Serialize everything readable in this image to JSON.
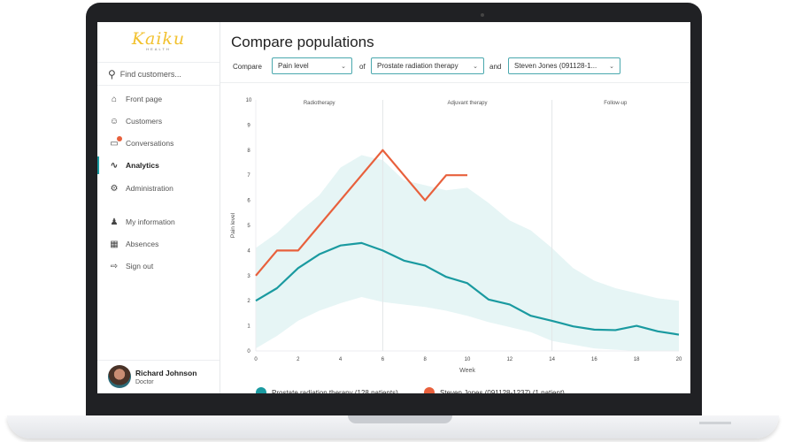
{
  "sidebar": {
    "logo": "Kaiku",
    "logo_sub": "HEALTH",
    "search_placeholder": "Find customers...",
    "items": [
      {
        "label": "Front page",
        "icon": "home-icon"
      },
      {
        "label": "Customers",
        "icon": "customers-icon"
      },
      {
        "label": "Conversations",
        "icon": "chat-icon",
        "badge": true
      },
      {
        "label": "Analytics",
        "icon": "analytics-icon",
        "active": true
      },
      {
        "label": "Administration",
        "icon": "gear-icon"
      },
      {
        "label": "My information",
        "icon": "user-icon"
      },
      {
        "label": "Absences",
        "icon": "calendar-icon"
      },
      {
        "label": "Sign out",
        "icon": "sign-out-icon"
      }
    ],
    "user": {
      "name": "Richard Johnson",
      "role": "Doctor"
    }
  },
  "header": {
    "title": "Compare populations",
    "compare_label": "Compare",
    "of_label": "of",
    "and_label": "and",
    "metric": "Pain level",
    "population": "Prostate radiation therapy",
    "patient": "Steven Jones (091128-1..."
  },
  "colors": {
    "accent": "#1a9aa0",
    "patient": "#e8603c",
    "band": "#e6f5f5"
  },
  "chart_data": {
    "type": "line",
    "xlabel": "Week",
    "ylabel": "Pain level",
    "xlim": [
      0,
      20
    ],
    "ylim": [
      0,
      10
    ],
    "xticks": [
      0,
      2,
      4,
      6,
      8,
      10,
      12,
      14,
      16,
      18,
      20
    ],
    "yticks": [
      0,
      1,
      2,
      3,
      4,
      5,
      6,
      7,
      8,
      9,
      10
    ],
    "phases": [
      {
        "label": "Radiotherapy",
        "start": 0,
        "end": 6
      },
      {
        "label": "Adjuvant therapy",
        "start": 6,
        "end": 14
      },
      {
        "label": "Follow-up",
        "start": 14,
        "end": 20
      }
    ],
    "band": {
      "x": [
        0,
        1,
        2,
        3,
        4,
        5,
        6,
        7,
        8,
        9,
        10,
        11,
        12,
        13,
        14,
        15,
        16,
        17,
        18,
        19,
        20
      ],
      "upper": [
        4.1,
        4.7,
        5.5,
        6.2,
        7.3,
        7.8,
        7.6,
        6.8,
        6.6,
        6.4,
        6.5,
        5.9,
        5.2,
        4.8,
        4.1,
        3.3,
        2.8,
        2.5,
        2.3,
        2.1,
        2.0
      ],
      "lower": [
        0.1,
        0.6,
        1.2,
        1.6,
        1.9,
        2.15,
        1.95,
        1.85,
        1.75,
        1.6,
        1.4,
        1.15,
        0.95,
        0.75,
        0.4,
        0.25,
        0.1,
        0.05,
        0,
        0,
        0
      ]
    },
    "series": [
      {
        "name": "Prostate radiation therapy (128 patients)",
        "color": "#1a9aa0",
        "x": [
          0,
          1,
          2,
          3,
          4,
          5,
          6,
          7,
          8,
          9,
          10,
          11,
          12,
          13,
          14,
          15,
          16,
          17,
          18,
          19,
          20
        ],
        "values": [
          2,
          2.5,
          3.3,
          3.85,
          4.2,
          4.3,
          4.0,
          3.6,
          3.4,
          2.95,
          2.7,
          2.05,
          1.85,
          1.4,
          1.2,
          0.98,
          0.85,
          0.83,
          1.0,
          0.78,
          0.65
        ]
      },
      {
        "name": "Steven Jones (091128-1237) (1 patient)",
        "color": "#e8603c",
        "x": [
          0,
          1,
          2,
          3,
          4,
          5,
          6,
          7,
          8,
          9,
          10
        ],
        "values": [
          3,
          4,
          4,
          5,
          6,
          7,
          8,
          7,
          6,
          7,
          7
        ]
      }
    ]
  }
}
